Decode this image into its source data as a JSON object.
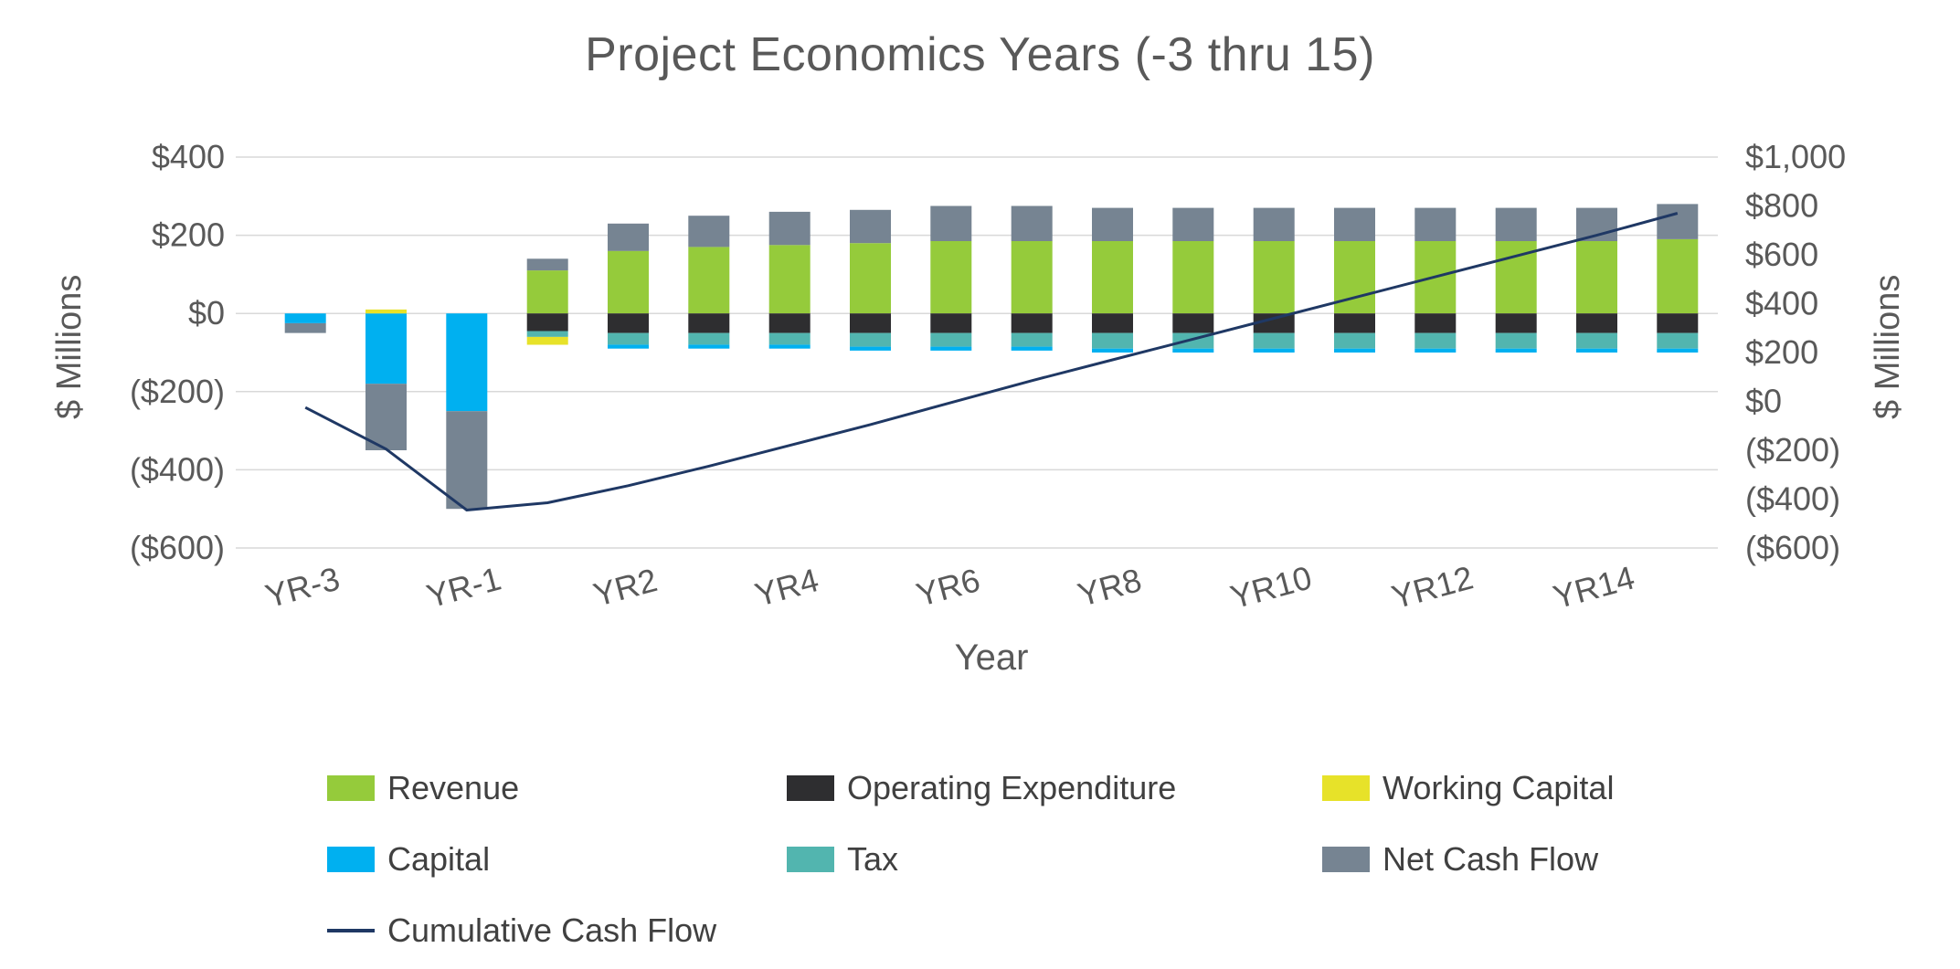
{
  "title": "Project Economics Years (-3 thru 15)",
  "axes": {
    "left_title": "$ Millions",
    "right_title": "$ Millions",
    "x_title": "Year",
    "left_ticks": [
      "$400",
      "$200",
      "$0",
      "($200)",
      "($400)",
      "($600)"
    ],
    "left_tick_values": [
      400,
      200,
      0,
      -200,
      -400,
      -600
    ],
    "right_ticks": [
      "$1,000",
      "$800",
      "$600",
      "$400",
      "$200",
      "$0",
      "($200)",
      "($400)",
      "($600)"
    ],
    "right_tick_values": [
      1000,
      800,
      600,
      400,
      200,
      0,
      -200,
      -400,
      -600
    ],
    "x_tick_labels": [
      "YR-3",
      "YR-1",
      "YR2",
      "YR4",
      "YR6",
      "YR8",
      "YR10",
      "YR12",
      "YR14"
    ],
    "x_tick_indices": [
      0,
      2,
      4,
      6,
      8,
      10,
      12,
      14,
      16
    ]
  },
  "colors": {
    "revenue": "#95CB3B",
    "opex": "#2E2E30",
    "working_capital": "#E7E229",
    "capital": "#00B0F0",
    "tax": "#52B5AF",
    "net_cash_flow": "#768492",
    "cumulative": "#1F3864",
    "grid": "#D9D9D9",
    "axis_text": "#595959",
    "legend_text": "#404040"
  },
  "legend": {
    "items": [
      {
        "label": "Revenue",
        "swatch": "rect",
        "color_key": "revenue"
      },
      {
        "label": "Operating Expenditure",
        "swatch": "rect",
        "color_key": "opex"
      },
      {
        "label": "Working Capital",
        "swatch": "rect",
        "color_key": "working_capital"
      },
      {
        "label": "Capital",
        "swatch": "rect",
        "color_key": "capital"
      },
      {
        "label": "Tax",
        "swatch": "rect",
        "color_key": "tax"
      },
      {
        "label": "Net Cash Flow",
        "swatch": "rect",
        "color_key": "net_cash_flow"
      },
      {
        "label": "Cumulative Cash Flow",
        "swatch": "line",
        "color_key": "cumulative"
      }
    ]
  },
  "chart_data": {
    "type": "bar",
    "subtype": "stacked-bar-with-line",
    "title": "Project Economics Years (-3 thru 15)",
    "xlabel": "Year",
    "ylabel_left": "$ Millions",
    "ylabel_right": "$ Millions",
    "left_axis_range": [
      -600,
      400
    ],
    "right_axis_range": [
      -600,
      1000
    ],
    "grid": true,
    "legend_position": "bottom",
    "categories": [
      "YR-3",
      "YR-2",
      "YR-1",
      "YR1",
      "YR2",
      "YR3",
      "YR4",
      "YR5",
      "YR6",
      "YR7",
      "YR8",
      "YR9",
      "YR10",
      "YR11",
      "YR12",
      "YR13",
      "YR14",
      "YR15"
    ],
    "series": [
      {
        "name": "Revenue",
        "color_key": "revenue",
        "values": [
          0,
          0,
          0,
          110,
          160,
          170,
          175,
          180,
          185,
          185,
          185,
          185,
          185,
          185,
          185,
          185,
          185,
          190
        ]
      },
      {
        "name": "Operating Expenditure",
        "color_key": "opex",
        "values": [
          0,
          0,
          0,
          -45,
          -50,
          -50,
          -50,
          -50,
          -50,
          -50,
          -50,
          -50,
          -50,
          -50,
          -50,
          -50,
          -50,
          -50
        ]
      },
      {
        "name": "Tax",
        "color_key": "tax",
        "values": [
          0,
          0,
          0,
          -15,
          -30,
          -30,
          -30,
          -35,
          -35,
          -35,
          -40,
          -40,
          -40,
          -40,
          -40,
          -40,
          -40,
          -40
        ]
      },
      {
        "name": "Capital",
        "color_key": "capital",
        "values": [
          -25,
          -180,
          -250,
          0,
          -10,
          -10,
          -10,
          -10,
          -10,
          -10,
          -10,
          -10,
          -10,
          -10,
          -10,
          -10,
          -10,
          -10
        ]
      },
      {
        "name": "Working Capital",
        "color_key": "working_capital",
        "values": [
          0,
          10,
          0,
          -20,
          0,
          0,
          0,
          0,
          0,
          0,
          0,
          0,
          0,
          0,
          0,
          0,
          0,
          0
        ]
      },
      {
        "name": "Net Cash Flow",
        "color_key": "net_cash_flow",
        "values": [
          -25,
          -170,
          -250,
          30,
          70,
          80,
          85,
          85,
          90,
          90,
          85,
          85,
          85,
          85,
          85,
          85,
          85,
          90
        ]
      }
    ],
    "line_series": {
      "name": "Cumulative Cash Flow",
      "color_key": "cumulative",
      "axis": "right",
      "values": [
        -25,
        -195,
        -445,
        -415,
        -345,
        -265,
        -180,
        -95,
        -5,
        85,
        170,
        255,
        340,
        425,
        510,
        595,
        680,
        770
      ]
    }
  }
}
